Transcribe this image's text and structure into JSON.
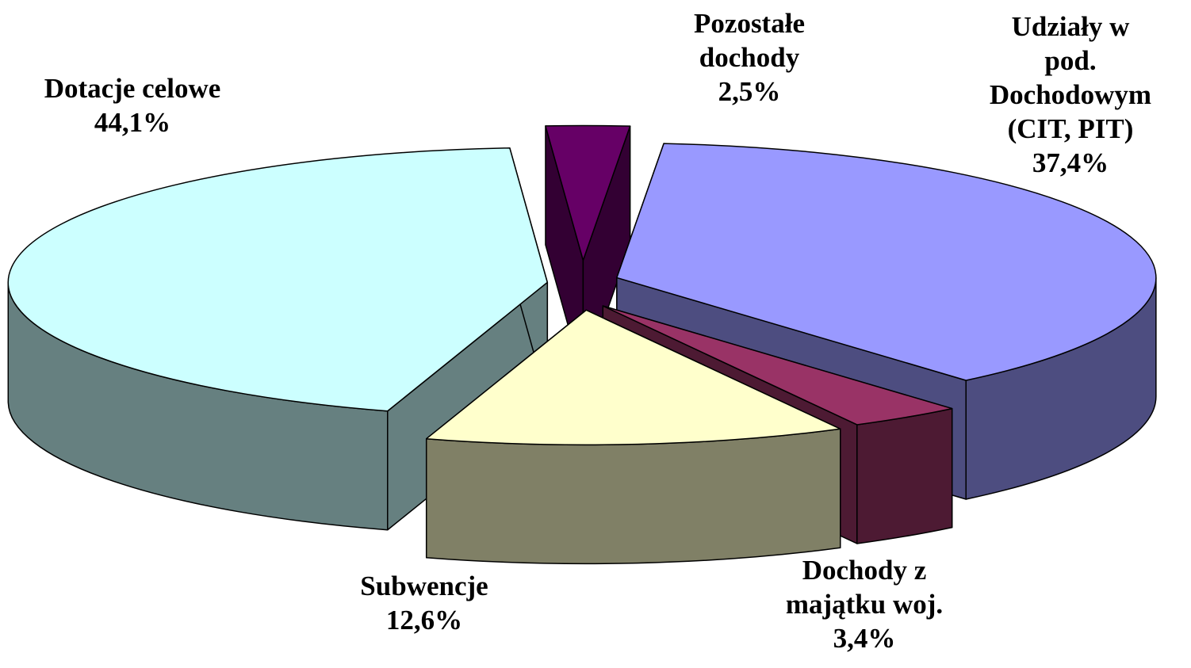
{
  "chart_data": {
    "type": "pie3d",
    "categories": [
      "Udziały w pod.\nDochodowym\n(CIT, PIT)",
      "Dochody z\nmajątku woj.",
      "Subwencje",
      "Dotacje celowe",
      "Pozostałe\ndochody"
    ],
    "values": [
      37.4,
      3.4,
      12.6,
      44.1,
      2.5
    ],
    "value_labels": [
      "37,4%",
      "3,4%",
      "12,6%",
      "44,1%",
      "2,5%"
    ],
    "colors": [
      "#9999ff",
      "#993366",
      "#ffffcc",
      "#ccffff",
      "#660066"
    ]
  }
}
